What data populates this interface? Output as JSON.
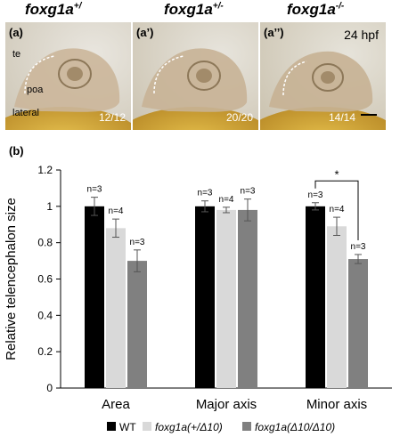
{
  "top_panel": {
    "photos": [
      {
        "letter": "(a)",
        "genotype_base": "foxg1a",
        "genotype_sup": "+/",
        "count": "12/12",
        "labels": [
          "te",
          "poa",
          "lateral"
        ],
        "hpf": ""
      },
      {
        "letter": "(a’)",
        "genotype_base": "foxg1a",
        "genotype_sup": "+/-",
        "count": "20/20",
        "labels": [],
        "hpf": ""
      },
      {
        "letter": "(a’’)",
        "genotype_base": "foxg1a",
        "genotype_sup": "-/-",
        "count": "14/14",
        "labels": [],
        "hpf": "24 hpf"
      }
    ]
  },
  "chart_data": {
    "panel_letter": "(b)",
    "type": "bar",
    "ylabel": "Relative telencephalon size",
    "ylim": [
      0,
      1.2
    ],
    "yticks": [
      "0",
      "0.2",
      "0.4",
      "0.6",
      "0.8",
      "1",
      "1.2"
    ],
    "categories": [
      "Area",
      "Major axis",
      "Minor axis"
    ],
    "series": [
      {
        "name": "WT",
        "color": "#000000",
        "values": [
          1.0,
          1.0,
          1.0
        ],
        "errors": [
          0.05,
          0.03,
          0.02
        ],
        "n_labels": [
          "n=3",
          "n=3",
          "n=3"
        ]
      },
      {
        "name": "foxg1a(+/Δ10)",
        "color": "#d9d9d9",
        "values": [
          0.88,
          0.98,
          0.89
        ],
        "errors": [
          0.05,
          0.015,
          0.05
        ],
        "n_labels": [
          "n=4",
          "n=4",
          "n=4"
        ]
      },
      {
        "name": "foxg1a(Δ10/Δ10)",
        "color": "#808080",
        "values": [
          0.7,
          0.98,
          0.71
        ],
        "errors": [
          0.06,
          0.06,
          0.025
        ],
        "n_labels": [
          "n=3",
          "n=3",
          "n=3"
        ]
      }
    ],
    "significance": {
      "label": "*",
      "category": "Minor axis",
      "from_series": 0,
      "to_series": 2
    },
    "legend_position": "bottom",
    "grid": false
  }
}
